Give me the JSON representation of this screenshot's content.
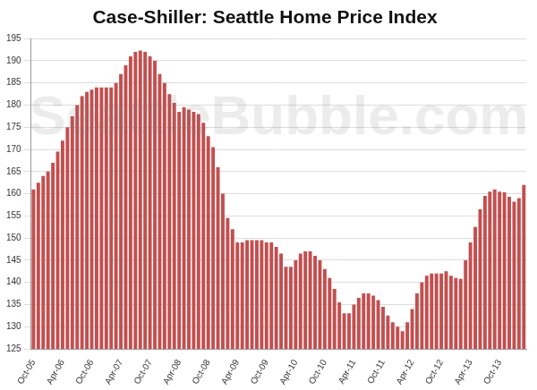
{
  "chart_data": {
    "type": "bar",
    "title": "Case-Shiller: Seattle Home Price Index",
    "annotations": [
      "SeattleBubble.com"
    ],
    "categories": [
      "Oct-05",
      null,
      null,
      null,
      null,
      null,
      "Apr-06",
      null,
      null,
      null,
      null,
      null,
      "Oct-06",
      null,
      null,
      null,
      null,
      null,
      "Apr-07",
      null,
      null,
      null,
      null,
      null,
      "Oct-07",
      null,
      null,
      null,
      null,
      null,
      "Apr-08",
      null,
      null,
      null,
      null,
      null,
      "Oct-08",
      null,
      null,
      null,
      null,
      null,
      "Apr-09",
      null,
      null,
      null,
      null,
      null,
      "Oct-09",
      null,
      null,
      null,
      null,
      null,
      "Apr-10",
      null,
      null,
      null,
      null,
      null,
      "Oct-10",
      null,
      null,
      null,
      null,
      null,
      "Apr-11",
      null,
      null,
      null,
      null,
      null,
      "Oct-11",
      null,
      null,
      null,
      null,
      null,
      "Apr-12",
      null,
      null,
      null,
      null,
      null,
      "Oct-12",
      null,
      null,
      null,
      null,
      null,
      "Apr-13",
      null,
      null,
      null,
      null,
      null,
      "Oct-13",
      null,
      null,
      null,
      null,
      null
    ],
    "values": [
      161,
      162.5,
      164,
      165,
      167,
      169.5,
      172,
      175,
      177.5,
      180,
      182,
      183,
      183.5,
      184,
      184,
      184,
      184,
      185,
      187,
      189,
      191,
      192,
      192.3,
      192,
      191,
      190,
      187,
      185,
      182.5,
      180.5,
      178.5,
      179.5,
      179,
      178.5,
      178,
      176,
      173,
      170.5,
      166,
      160,
      154.5,
      152,
      149,
      149,
      149.5,
      149.5,
      149.5,
      149.5,
      149,
      149,
      148,
      146.5,
      143.5,
      143.5,
      145,
      146.5,
      147,
      147,
      146,
      145,
      143,
      141,
      138.5,
      135.5,
      133,
      133,
      135,
      136.5,
      137.5,
      137.5,
      137,
      136,
      134.5,
      132.5,
      131,
      130,
      129,
      131,
      134,
      137.5,
      140,
      141.5,
      142,
      142,
      142,
      142.5,
      141.5,
      141,
      140.8,
      145,
      149,
      152.5,
      156.5,
      159.5,
      160.5,
      161,
      160.5,
      160.3,
      159.3,
      158.2,
      159,
      162
    ],
    "color": "#c44e4e",
    "ylim": [
      125,
      195
    ],
    "yticks": [
      125,
      130,
      135,
      140,
      145,
      150,
      155,
      160,
      165,
      170,
      175,
      180,
      185,
      190,
      195
    ],
    "grid": true
  }
}
